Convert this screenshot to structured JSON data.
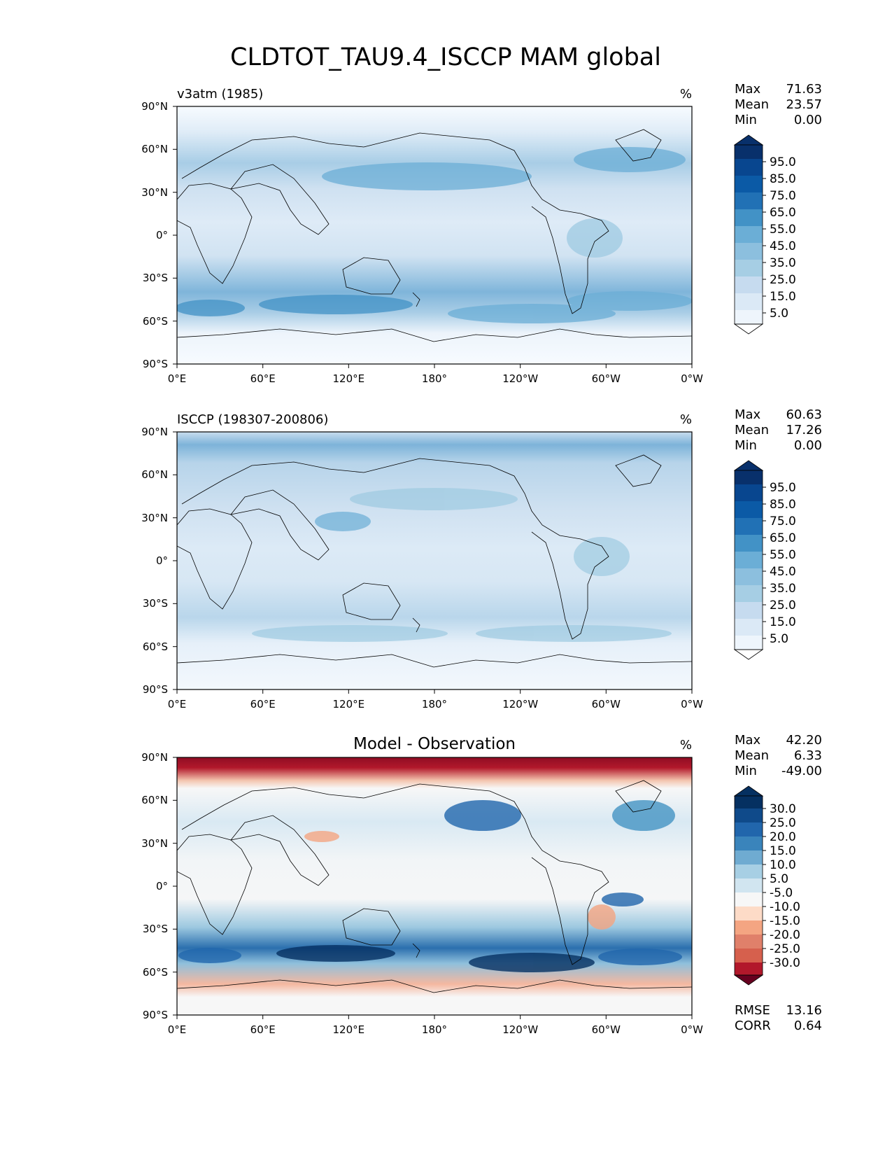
{
  "figure_title": "CLDTOT_TAU9.4_ISCCP MAM global",
  "colors": {
    "seq_ramp": [
      "#f7fbff",
      "#deebf7",
      "#c6dbef",
      "#9ecae1",
      "#6baed6",
      "#4292c6",
      "#2171b5",
      "#08519c",
      "#08306b"
    ],
    "div_blue": [
      "#d1e5f0",
      "#92c5de",
      "#4393c3",
      "#2166ac",
      "#053061"
    ],
    "div_red": [
      "#fddbc7",
      "#f4a582",
      "#d6604d",
      "#b2182b",
      "#67001f"
    ],
    "div_neutral": "#f7f7f7",
    "land_outline": "#000000"
  },
  "axis_ticks": {
    "lat": [
      "90°N",
      "60°N",
      "30°N",
      "0°",
      "30°S",
      "60°S",
      "90°S"
    ],
    "lon": [
      "0°E",
      "60°E",
      "120°E",
      "180°",
      "120°W",
      "60°W",
      "0°W"
    ]
  },
  "panels": [
    {
      "id": "model",
      "title_left": "v3atm (1985)",
      "title_center": "",
      "unit": "%",
      "stats": [
        {
          "label": "Max",
          "value": "71.63"
        },
        {
          "label": "Mean",
          "value": "23.57"
        },
        {
          "label": "Min",
          "value": "0.00"
        }
      ],
      "colorbar": {
        "labels": [
          "95.0",
          "85.0",
          "75.0",
          "65.0",
          "55.0",
          "45.0",
          "35.0",
          "25.0",
          "15.0",
          "5.0"
        ],
        "colors": [
          "#08306b",
          "#08468f",
          "#0b5aa6",
          "#2171b5",
          "#4292c6",
          "#6baed6",
          "#8cbfde",
          "#a6cee4",
          "#c6dbef",
          "#dbe9f6",
          "#eef5fc",
          "#ffffff"
        ]
      },
      "footer_stats": []
    },
    {
      "id": "obs",
      "title_left": "ISCCP (198307-200806)",
      "title_center": "",
      "unit": "%",
      "stats": [
        {
          "label": "Max",
          "value": "60.63"
        },
        {
          "label": "Mean",
          "value": "17.26"
        },
        {
          "label": "Min",
          "value": "0.00"
        }
      ],
      "colorbar": {
        "labels": [
          "95.0",
          "85.0",
          "75.0",
          "65.0",
          "55.0",
          "45.0",
          "35.0",
          "25.0",
          "15.0",
          "5.0"
        ],
        "colors": [
          "#08306b",
          "#08468f",
          "#0b5aa6",
          "#2171b5",
          "#4292c6",
          "#6baed6",
          "#8cbfde",
          "#a6cee4",
          "#c6dbef",
          "#dbe9f6",
          "#eef5fc",
          "#ffffff"
        ]
      },
      "footer_stats": []
    },
    {
      "id": "diff",
      "title_left": "",
      "title_center": "Model - Observation",
      "unit": "%",
      "stats": [
        {
          "label": "Max",
          "value": "42.20"
        },
        {
          "label": "Mean",
          "value": "6.33"
        },
        {
          "label": "Min",
          "value": "-49.00"
        }
      ],
      "colorbar": {
        "labels": [
          "30.0",
          "25.0",
          "20.0",
          "15.0",
          "10.0",
          "5.0",
          "-5.0",
          "-10.0",
          "-15.0",
          "-20.0",
          "-25.0",
          "-30.0"
        ],
        "colors": [
          "#053061",
          "#0f4a8a",
          "#2166ac",
          "#3a84bb",
          "#6fabd1",
          "#a7cfe4",
          "#d1e5f0",
          "#f7f7f7",
          "#fddbc7",
          "#f4a582",
          "#e0806a",
          "#d6604d",
          "#b2182b",
          "#67001f"
        ]
      },
      "footer_stats": [
        {
          "label": "RMSE",
          "value": "13.16"
        },
        {
          "label": "CORR",
          "value": "0.64"
        }
      ]
    }
  ]
}
